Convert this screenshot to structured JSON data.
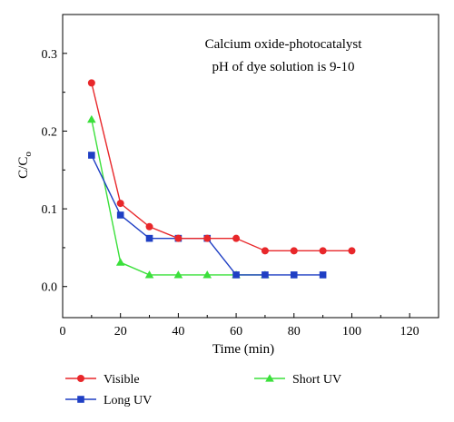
{
  "chart_data": {
    "type": "line",
    "title": "",
    "annotations": [
      "Calcium oxide-photocatalyst",
      "pH of dye solution is 9-10"
    ],
    "xlabel": "Time (min)",
    "ylabel_main": "C/C",
    "ylabel_sub": "o",
    "xlim": [
      0,
      130
    ],
    "ylim": [
      -0.04,
      0.35
    ],
    "xticks": [
      0,
      20,
      40,
      60,
      80,
      100,
      120
    ],
    "xtick_labels": [
      "0",
      "20",
      "40",
      "60",
      "80",
      "100",
      "120"
    ],
    "yticks": [
      0.0,
      0.1,
      0.2,
      0.3
    ],
    "ytick_labels": [
      "0.0",
      "0.1",
      "0.2",
      "0.3"
    ],
    "grid": false,
    "legend_placement": "bottom",
    "series": [
      {
        "name": "Visible",
        "color": "#e8272a",
        "marker": "circle",
        "x": [
          10,
          20,
          30,
          40,
          50,
          60,
          70,
          80,
          90,
          100
        ],
        "y": [
          0.262,
          0.107,
          0.077,
          0.062,
          0.062,
          0.062,
          0.046,
          0.046,
          0.046,
          0.046
        ]
      },
      {
        "name": "Long UV",
        "color": "#1f3fc4",
        "marker": "square",
        "x": [
          10,
          20,
          30,
          40,
          50,
          60,
          70,
          80,
          90
        ],
        "y": [
          0.169,
          0.092,
          0.062,
          0.062,
          0.062,
          0.015,
          0.015,
          0.015,
          0.015
        ]
      },
      {
        "name": "Short UV",
        "color": "#3be03b",
        "marker": "triangle",
        "x": [
          10,
          20,
          30,
          40,
          50,
          60,
          70
        ],
        "y": [
          0.215,
          0.031,
          0.015,
          0.015,
          0.015,
          0.015,
          0.015
        ]
      }
    ]
  }
}
